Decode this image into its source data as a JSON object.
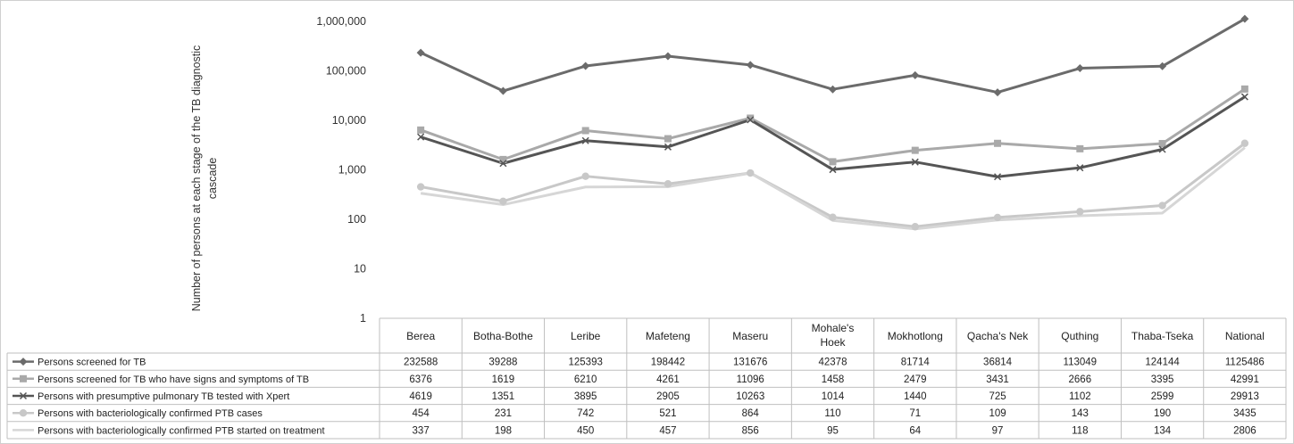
{
  "chart_data": {
    "type": "line",
    "ylabel": "Number of persons at each stage of the TB diagnostic cascade",
    "y_scale": "log",
    "ylim": [
      1,
      1000000
    ],
    "y_ticks": [
      "1",
      "10",
      "100",
      "1,000",
      "10,000",
      "100,000",
      "1,000,000"
    ],
    "categories": [
      "Berea",
      "Botha-Bothe",
      "Leribe",
      "Mafeteng",
      "Maseru",
      "Mohale's Hoek",
      "Mokhotlong",
      "Qacha's Nek",
      "Quthing",
      "Thaba-Tseka",
      "National"
    ],
    "legend_placement": "data table below chart",
    "series": [
      {
        "name": "Persons screened for TB",
        "marker": "diamond",
        "color": "#6b6b6b",
        "values": [
          232588,
          39288,
          125393,
          198442,
          131676,
          42378,
          81714,
          36814,
          113049,
          124144,
          1125486
        ]
      },
      {
        "name": "Persons screened for TB who have signs and symptoms of TB",
        "marker": "square",
        "color": "#a9a9a9",
        "values": [
          6376,
          1619,
          6210,
          4261,
          11096,
          1458,
          2479,
          3431,
          2666,
          3395,
          42991
        ]
      },
      {
        "name": "Persons with presumptive pulmonary TB tested with Xpert",
        "marker": "x",
        "color": "#555555",
        "values": [
          4619,
          1351,
          3895,
          2905,
          10263,
          1014,
          1440,
          725,
          1102,
          2599,
          29913
        ]
      },
      {
        "name": "Persons with bacteriologically confirmed PTB cases",
        "marker": "circle",
        "color": "#c8c8c8",
        "values": [
          454,
          231,
          742,
          521,
          864,
          110,
          71,
          109,
          143,
          190,
          3435
        ]
      },
      {
        "name": "Persons with bacteriologically confirmed PTB started on treatment",
        "marker": "none",
        "color": "#d6d6d6",
        "values": [
          337,
          198,
          450,
          457,
          856,
          95,
          64,
          97,
          118,
          134,
          2806
        ]
      }
    ]
  }
}
